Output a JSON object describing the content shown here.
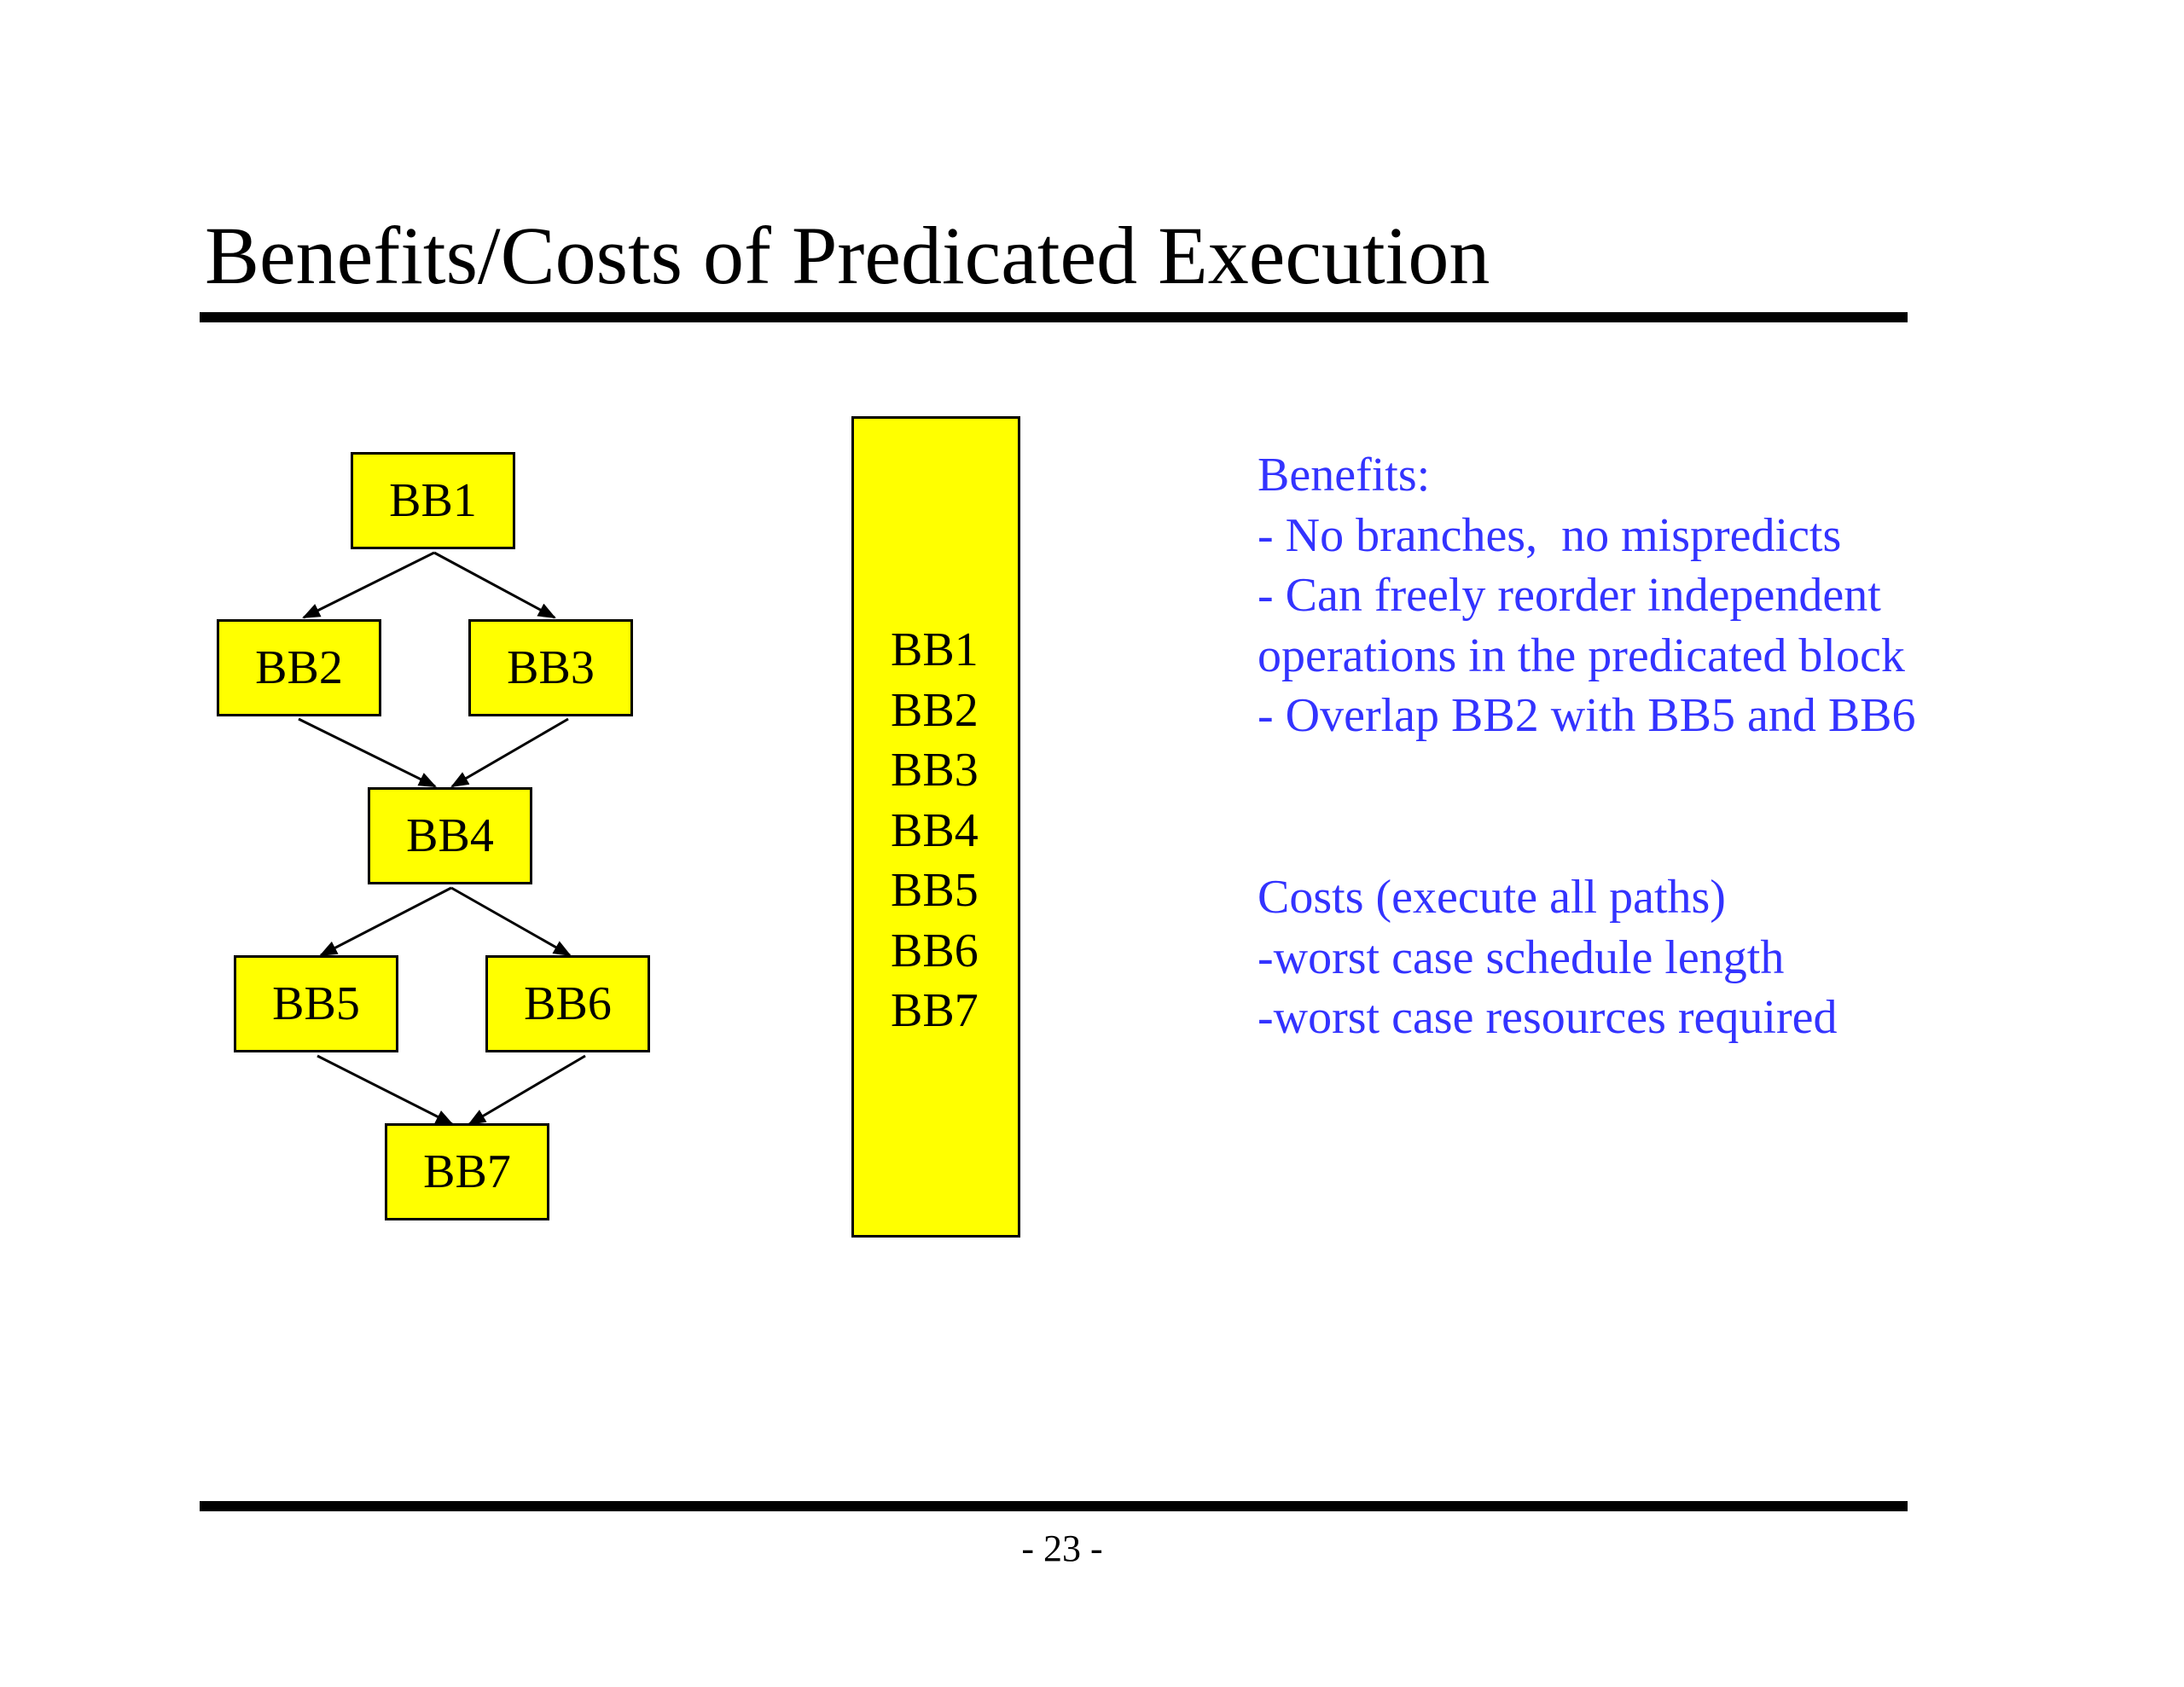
{
  "slide": {
    "title": "Benefits/Costs of Predicated Execution",
    "page_number": "- 23 -"
  },
  "cfg": {
    "blocks": [
      "BB1",
      "BB2",
      "BB3",
      "BB4",
      "BB5",
      "BB6",
      "BB7"
    ],
    "edges": [
      [
        "BB1",
        "BB2"
      ],
      [
        "BB1",
        "BB3"
      ],
      [
        "BB2",
        "BB4"
      ],
      [
        "BB3",
        "BB4"
      ],
      [
        "BB4",
        "BB5"
      ],
      [
        "BB4",
        "BB6"
      ],
      [
        "BB5",
        "BB7"
      ],
      [
        "BB6",
        "BB7"
      ]
    ],
    "fill_color": "#ffff00",
    "border_color": "#000000"
  },
  "predicated_block": {
    "lines": [
      "BB1",
      "BB2",
      "BB3",
      "BB4",
      "BB5",
      "BB6",
      "BB7"
    ]
  },
  "benefits": {
    "heading": "Benefits:",
    "lines": [
      "- No branches,  no mispredicts",
      "- Can freely reorder independent",
      "operations in the predicated block",
      "- Overlap BB2 with BB5 and BB6"
    ]
  },
  "costs": {
    "heading": "Costs (execute all paths)",
    "lines": [
      "-worst case schedule length",
      "-worst case resources required"
    ]
  },
  "colors": {
    "notes_text": "#3333ff",
    "block_fill": "#ffff00"
  }
}
